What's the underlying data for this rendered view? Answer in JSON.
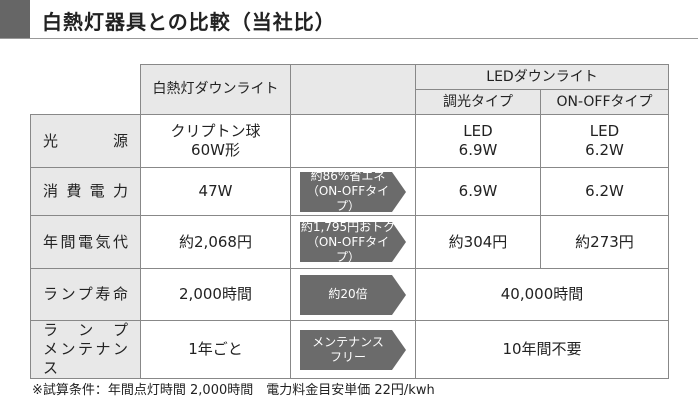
{
  "header": {
    "title": "白熱灯器具との比較（当社比）"
  },
  "table": {
    "columns": {
      "incandescent": "白熱灯ダウンライト",
      "led_group": "LEDダウンライト",
      "led_types": [
        "調光タイプ",
        "ON-OFFタイプ"
      ]
    },
    "rows": [
      {
        "label": [
          "光源"
        ],
        "incandescent": [
          "クリプトン球",
          "60W形"
        ],
        "led": [
          [
            "LED",
            "6.9W"
          ],
          [
            "LED",
            "6.2W"
          ]
        ]
      },
      {
        "label": [
          "消費電力"
        ],
        "incandescent": [
          "47W"
        ],
        "comparison": [
          "約86%省エネ",
          "（ON-OFFタイプ）"
        ],
        "led": [
          [
            "6.9W"
          ],
          [
            "6.2W"
          ]
        ]
      },
      {
        "label": [
          "年間電気代"
        ],
        "incandescent": [
          "約2,068円"
        ],
        "comparison": [
          "約1,795円おトク",
          "（ON-OFFタイプ）"
        ],
        "led": [
          [
            "約304円"
          ],
          [
            "約273円"
          ]
        ]
      },
      {
        "label": [
          "ランプ寿命"
        ],
        "incandescent": [
          "2,000時間"
        ],
        "comparison": [
          "約20倍"
        ],
        "led": [
          [
            "40,000時間"
          ]
        ]
      },
      {
        "label": [
          "ランプ",
          "メンテナンス"
        ],
        "incandescent": [
          "1年ごと"
        ],
        "comparison": [
          "メンテナンス",
          "フリー"
        ],
        "led": [
          [
            "10年間不要"
          ]
        ]
      }
    ]
  },
  "footnote": "※試算条件：年間点灯時間 2,000時間　電力料金目安単価 22円/kwh"
}
